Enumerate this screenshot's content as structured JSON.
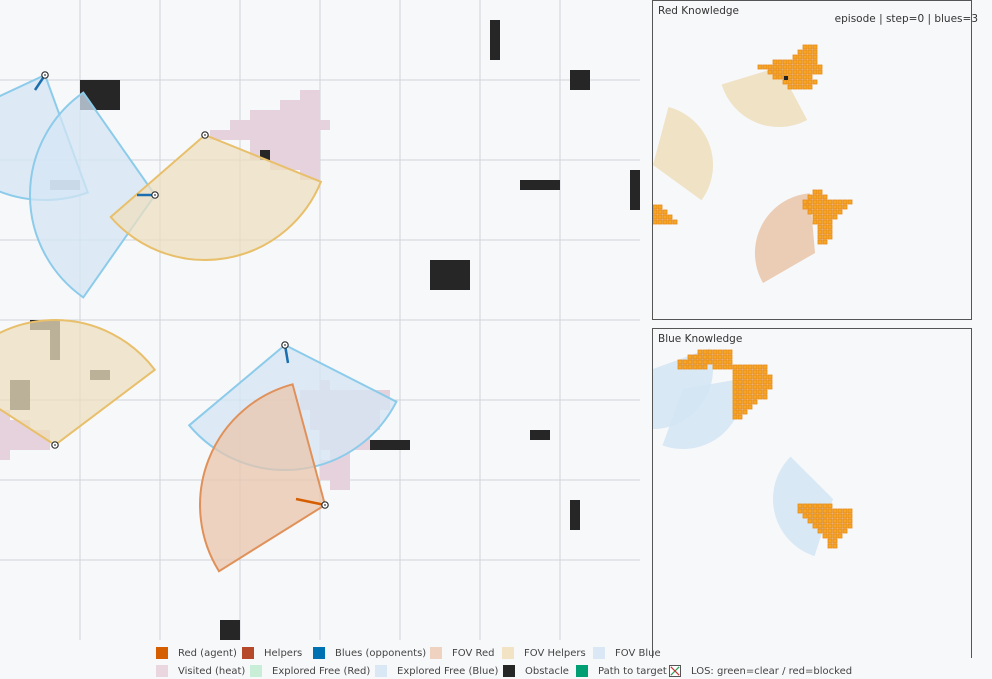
{
  "status": {
    "episode_label": "episode | step=0 | blues=3"
  },
  "panels": {
    "red_knowledge": {
      "title": "Red Knowledge"
    },
    "blue_knowledge": {
      "title": "Blue Knowledge"
    }
  },
  "legend": [
    {
      "label": "Red (agent)",
      "color": "#d55e00",
      "kind": "fill"
    },
    {
      "label": "Helpers",
      "color": "#b5492a",
      "kind": "fill"
    },
    {
      "label": "Blues (opponents)",
      "color": "#0072b2",
      "kind": "fill"
    },
    {
      "label": "FOV Red",
      "color": "#efd2bf",
      "kind": "fill"
    },
    {
      "label": "FOV Helpers",
      "color": "#f1e3c4",
      "kind": "fill"
    },
    {
      "label": "FOV Blue",
      "color": "#d9e8f4",
      "kind": "fill"
    },
    {
      "label": "Visited (heat)",
      "color": "#ead6df",
      "kind": "fill"
    },
    {
      "label": "Explored Free (Red)",
      "color": "#c9eed7",
      "kind": "fill"
    },
    {
      "label": "Explored Free (Blue)",
      "color": "#d9e8f4",
      "kind": "fill"
    },
    {
      "label": "Obstacle",
      "color": "#262626",
      "kind": "fill"
    },
    {
      "label": "Path to target",
      "color": "#009e73",
      "kind": "fill"
    },
    {
      "label": "LOS: green=clear / red=blocked",
      "color": "#cc3333",
      "kind": "los"
    }
  ],
  "colors": {
    "grid": "#d0d3d8",
    "obstacle": "#262626",
    "fov_red_fill": "#e9c6ac",
    "fov_red_stroke": "#e0915a",
    "fov_helper_fill": "#eedfbf",
    "fov_helper_stroke": "#e8bf6a",
    "fov_blue_fill": "#d4e6f4",
    "fov_blue_stroke": "#8ccbea",
    "visited": "#e6d2dc",
    "knowledge_cell": "#f5a623",
    "knowledge_stroke": "#e8891a"
  }
}
